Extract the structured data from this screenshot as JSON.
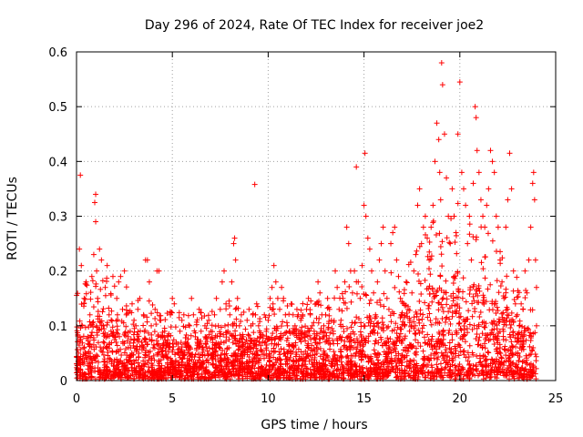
{
  "chart_data": {
    "type": "scatter",
    "title": "Day 296 of 2024, Rate Of TEC Index for receiver joe2",
    "xlabel": "GPS time / hours",
    "ylabel": "ROTI / TECUs",
    "xlim": [
      0,
      25
    ],
    "ylim": [
      0,
      0.6
    ],
    "xticks": [
      0,
      5,
      10,
      15,
      20,
      25
    ],
    "yticks": [
      0,
      0.1,
      0.2,
      0.3,
      0.4,
      0.5,
      0.6
    ],
    "xtick_labels": [
      "0",
      "5",
      "10",
      "15",
      "20",
      "25"
    ],
    "ytick_labels": [
      "0",
      "0.1",
      "0.2",
      "0.3",
      "0.4",
      "0.5",
      "0.6"
    ],
    "grid": true,
    "marker": "+",
    "series": [
      {
        "name": "ROTI",
        "color": "#ff0000",
        "points": [
          [
            0.05,
            0.02
          ],
          [
            0.1,
            0.05
          ],
          [
            0.15,
            0.24
          ],
          [
            0.2,
            0.375
          ],
          [
            0.25,
            0.21
          ],
          [
            0.3,
            0.1
          ],
          [
            0.4,
            0.15
          ],
          [
            0.5,
            0.18
          ],
          [
            0.6,
            0.08
          ],
          [
            0.7,
            0.12
          ],
          [
            0.8,
            0.19
          ],
          [
            0.9,
            0.23
          ],
          [
            0.95,
            0.325
          ],
          [
            1.0,
            0.34
          ],
          [
            1.0,
            0.29
          ],
          [
            1.05,
            0.2
          ],
          [
            1.1,
            0.15
          ],
          [
            1.2,
            0.24
          ],
          [
            1.3,
            0.22
          ],
          [
            1.4,
            0.1
          ],
          [
            1.5,
            0.17
          ],
          [
            1.6,
            0.21
          ],
          [
            1.7,
            0.12
          ],
          [
            1.8,
            0.09
          ],
          [
            1.9,
            0.19
          ],
          [
            2.0,
            0.08
          ],
          [
            2.1,
            0.15
          ],
          [
            2.2,
            0.18
          ],
          [
            2.3,
            0.19
          ],
          [
            2.4,
            0.13
          ],
          [
            2.5,
            0.2
          ],
          [
            2.6,
            0.12
          ],
          [
            2.7,
            0.08
          ],
          [
            2.8,
            0.09
          ],
          [
            2.9,
            0.14
          ],
          [
            3.0,
            0.11
          ],
          [
            3.1,
            0.1
          ],
          [
            3.2,
            0.13
          ],
          [
            3.3,
            0.15
          ],
          [
            3.4,
            0.07
          ],
          [
            3.5,
            0.12
          ],
          [
            3.6,
            0.22
          ],
          [
            3.7,
            0.22
          ],
          [
            3.8,
            0.18
          ],
          [
            3.9,
            0.1
          ],
          [
            4.0,
            0.06
          ],
          [
            4.1,
            0.13
          ],
          [
            4.2,
            0.2
          ],
          [
            4.3,
            0.2
          ],
          [
            4.4,
            0.11
          ],
          [
            4.5,
            0.08
          ],
          [
            4.6,
            0.09
          ],
          [
            4.7,
            0.07
          ],
          [
            4.8,
            0.06
          ],
          [
            4.9,
            0.12
          ],
          [
            5.0,
            0.15
          ],
          [
            5.1,
            0.14
          ],
          [
            5.2,
            0.07
          ],
          [
            5.3,
            0.05
          ],
          [
            5.4,
            0.09
          ],
          [
            5.5,
            0.11
          ],
          [
            5.6,
            0.12
          ],
          [
            5.7,
            0.07
          ],
          [
            5.8,
            0.06
          ],
          [
            5.9,
            0.1
          ],
          [
            6.0,
            0.15
          ],
          [
            6.1,
            0.12
          ],
          [
            6.2,
            0.08
          ],
          [
            6.3,
            0.07
          ],
          [
            6.4,
            0.13
          ],
          [
            6.5,
            0.09
          ],
          [
            6.6,
            0.06
          ],
          [
            6.7,
            0.1
          ],
          [
            6.8,
            0.08
          ],
          [
            6.9,
            0.11
          ],
          [
            7.0,
            0.09
          ],
          [
            7.1,
            0.05
          ],
          [
            7.2,
            0.12
          ],
          [
            7.3,
            0.15
          ],
          [
            7.4,
            0.1
          ],
          [
            7.5,
            0.13
          ],
          [
            7.6,
            0.18
          ],
          [
            7.7,
            0.2
          ],
          [
            7.8,
            0.14
          ],
          [
            7.9,
            0.09
          ],
          [
            8.0,
            0.12
          ],
          [
            8.1,
            0.18
          ],
          [
            8.2,
            0.25
          ],
          [
            8.25,
            0.26
          ],
          [
            8.3,
            0.22
          ],
          [
            8.4,
            0.15
          ],
          [
            8.5,
            0.1
          ],
          [
            8.6,
            0.12
          ],
          [
            8.7,
            0.08
          ],
          [
            8.8,
            0.07
          ],
          [
            8.9,
            0.11
          ],
          [
            9.0,
            0.13
          ],
          [
            9.1,
            0.1
          ],
          [
            9.2,
            0.12
          ],
          [
            9.3,
            0.358
          ],
          [
            9.4,
            0.14
          ],
          [
            9.5,
            0.1
          ],
          [
            9.6,
            0.08
          ],
          [
            9.7,
            0.07
          ],
          [
            9.8,
            0.12
          ],
          [
            9.9,
            0.09
          ],
          [
            10.0,
            0.11
          ],
          [
            10.1,
            0.15
          ],
          [
            10.2,
            0.17
          ],
          [
            10.3,
            0.21
          ],
          [
            10.4,
            0.18
          ],
          [
            10.5,
            0.15
          ],
          [
            10.6,
            0.13
          ],
          [
            10.7,
            0.17
          ],
          [
            10.8,
            0.15
          ],
          [
            10.9,
            0.12
          ],
          [
            11.0,
            0.1
          ],
          [
            11.1,
            0.09
          ],
          [
            11.2,
            0.14
          ],
          [
            11.3,
            0.12
          ],
          [
            11.4,
            0.1
          ],
          [
            11.5,
            0.13
          ],
          [
            11.6,
            0.09
          ],
          [
            11.7,
            0.11
          ],
          [
            11.8,
            0.12
          ],
          [
            11.9,
            0.08
          ],
          [
            12.0,
            0.13
          ],
          [
            12.1,
            0.15
          ],
          [
            12.2,
            0.12
          ],
          [
            12.3,
            0.1
          ],
          [
            12.4,
            0.09
          ],
          [
            12.5,
            0.14
          ],
          [
            12.6,
            0.18
          ],
          [
            12.7,
            0.16
          ],
          [
            12.8,
            0.12
          ],
          [
            12.9,
            0.1
          ],
          [
            13.0,
            0.12
          ],
          [
            13.1,
            0.15
          ],
          [
            13.2,
            0.13
          ],
          [
            13.3,
            0.11
          ],
          [
            13.4,
            0.09
          ],
          [
            13.5,
            0.2
          ],
          [
            13.6,
            0.17
          ],
          [
            13.7,
            0.13
          ],
          [
            13.8,
            0.11
          ],
          [
            13.9,
            0.15
          ],
          [
            14.0,
            0.18
          ],
          [
            14.1,
            0.28
          ],
          [
            14.2,
            0.25
          ],
          [
            14.3,
            0.2
          ],
          [
            14.4,
            0.16
          ],
          [
            14.5,
            0.2
          ],
          [
            14.6,
            0.39
          ],
          [
            14.7,
            0.18
          ],
          [
            14.8,
            0.15
          ],
          [
            14.9,
            0.21
          ],
          [
            15.0,
            0.32
          ],
          [
            15.05,
            0.415
          ],
          [
            15.1,
            0.3
          ],
          [
            15.2,
            0.26
          ],
          [
            15.3,
            0.24
          ],
          [
            15.4,
            0.2
          ],
          [
            15.5,
            0.16
          ],
          [
            15.6,
            0.12
          ],
          [
            15.7,
            0.18
          ],
          [
            15.8,
            0.22
          ],
          [
            15.9,
            0.25
          ],
          [
            16.0,
            0.28
          ],
          [
            16.1,
            0.2
          ],
          [
            16.2,
            0.15
          ],
          [
            16.3,
            0.13
          ],
          [
            16.4,
            0.25
          ],
          [
            16.5,
            0.27
          ],
          [
            16.6,
            0.28
          ],
          [
            16.7,
            0.22
          ],
          [
            16.8,
            0.19
          ],
          [
            16.9,
            0.15
          ],
          [
            17.0,
            0.12
          ],
          [
            17.1,
            0.14
          ],
          [
            17.2,
            0.18
          ],
          [
            17.3,
            0.13
          ],
          [
            17.4,
            0.11
          ],
          [
            17.5,
            0.16
          ],
          [
            17.6,
            0.2
          ],
          [
            17.7,
            0.23
          ],
          [
            17.8,
            0.32
          ],
          [
            17.9,
            0.35
          ],
          [
            18.0,
            0.25
          ],
          [
            18.1,
            0.28
          ],
          [
            18.2,
            0.3
          ],
          [
            18.3,
            0.26
          ],
          [
            18.4,
            0.22
          ],
          [
            18.5,
            0.28
          ],
          [
            18.6,
            0.32
          ],
          [
            18.7,
            0.4
          ],
          [
            18.8,
            0.47
          ],
          [
            18.9,
            0.44
          ],
          [
            18.95,
            0.38
          ],
          [
            19.0,
            0.33
          ],
          [
            19.05,
            0.58
          ],
          [
            19.1,
            0.54
          ],
          [
            19.2,
            0.45
          ],
          [
            19.3,
            0.37
          ],
          [
            19.4,
            0.3
          ],
          [
            19.5,
            0.25
          ],
          [
            19.6,
            0.35
          ],
          [
            19.7,
            0.3
          ],
          [
            19.8,
            0.27
          ],
          [
            19.9,
            0.45
          ],
          [
            20.0,
            0.545
          ],
          [
            20.1,
            0.38
          ],
          [
            20.2,
            0.35
          ],
          [
            20.3,
            0.32
          ],
          [
            20.4,
            0.25
          ],
          [
            20.5,
            0.3
          ],
          [
            20.6,
            0.22
          ],
          [
            20.7,
            0.36
          ],
          [
            20.8,
            0.5
          ],
          [
            20.85,
            0.48
          ],
          [
            20.9,
            0.42
          ],
          [
            21.0,
            0.38
          ],
          [
            21.1,
            0.33
          ],
          [
            21.2,
            0.3
          ],
          [
            21.3,
            0.28
          ],
          [
            21.4,
            0.32
          ],
          [
            21.5,
            0.35
          ],
          [
            21.6,
            0.42
          ],
          [
            21.7,
            0.4
          ],
          [
            21.8,
            0.38
          ],
          [
            21.9,
            0.3
          ],
          [
            22.0,
            0.28
          ],
          [
            22.1,
            0.22
          ],
          [
            22.2,
            0.18
          ],
          [
            22.3,
            0.15
          ],
          [
            22.4,
            0.28
          ],
          [
            22.5,
            0.33
          ],
          [
            22.6,
            0.415
          ],
          [
            22.7,
            0.35
          ],
          [
            22.8,
            0.2
          ],
          [
            22.9,
            0.14
          ],
          [
            23.0,
            0.12
          ],
          [
            23.1,
            0.1
          ],
          [
            23.2,
            0.14
          ],
          [
            23.3,
            0.13
          ],
          [
            23.4,
            0.2
          ],
          [
            23.5,
            0.16
          ],
          [
            23.6,
            0.22
          ],
          [
            23.7,
            0.28
          ],
          [
            23.8,
            0.36
          ],
          [
            23.85,
            0.38
          ],
          [
            23.9,
            0.33
          ],
          [
            23.95,
            0.22
          ],
          [
            24.0,
            0.17
          ],
          [
            24.0,
            0.1
          ]
        ],
        "density_band_profile": [
          [
            0,
            0.08
          ],
          [
            1,
            0.09
          ],
          [
            2,
            0.09
          ],
          [
            3,
            0.08
          ],
          [
            4,
            0.07
          ],
          [
            5,
            0.06
          ],
          [
            6,
            0.06
          ],
          [
            7,
            0.06
          ],
          [
            8,
            0.07
          ],
          [
            9,
            0.06
          ],
          [
            10,
            0.07
          ],
          [
            11,
            0.07
          ],
          [
            12,
            0.07
          ],
          [
            13,
            0.07
          ],
          [
            14,
            0.08
          ],
          [
            15,
            0.09
          ],
          [
            16,
            0.09
          ],
          [
            17,
            0.1
          ],
          [
            18,
            0.13
          ],
          [
            19,
            0.15
          ],
          [
            20,
            0.16
          ],
          [
            21,
            0.14
          ],
          [
            22,
            0.12
          ],
          [
            23,
            0.09
          ],
          [
            24,
            0.07
          ]
        ]
      }
    ]
  }
}
